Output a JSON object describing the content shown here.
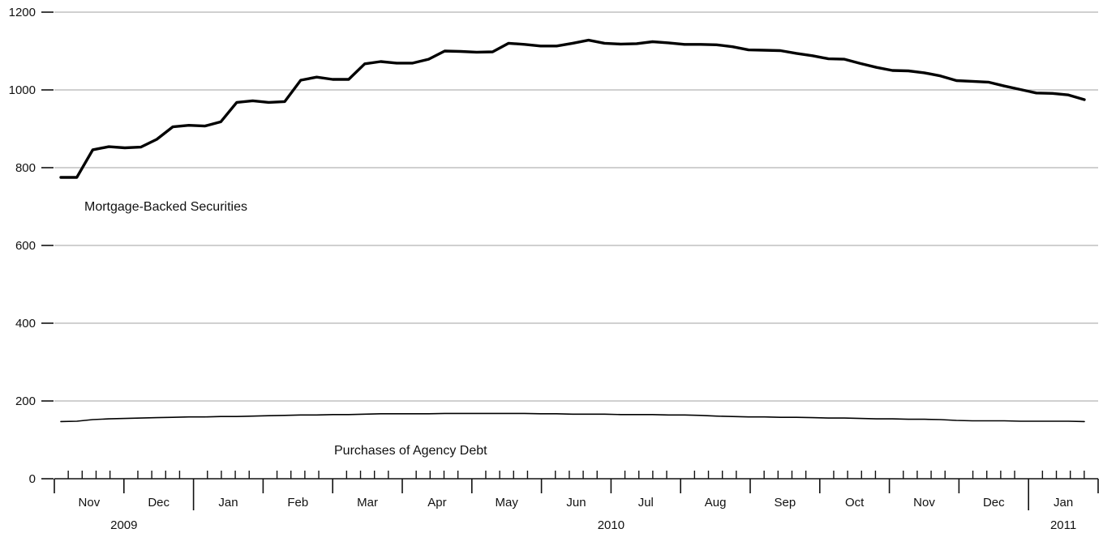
{
  "chart_data": {
    "type": "line",
    "title": "",
    "xlabel": "",
    "ylabel": "",
    "ylim": [
      0,
      1200
    ],
    "yticks": [
      0,
      200,
      400,
      600,
      800,
      1000,
      1200
    ],
    "grid": true,
    "months": [
      {
        "label": "Nov",
        "year": "2009"
      },
      {
        "label": "Dec",
        "year": "2009"
      },
      {
        "label": "Jan",
        "year": "2010"
      },
      {
        "label": "Feb",
        "year": "2010"
      },
      {
        "label": "Mar",
        "year": "2010"
      },
      {
        "label": "Apr",
        "year": "2010"
      },
      {
        "label": "May",
        "year": "2010"
      },
      {
        "label": "Jun",
        "year": "2010"
      },
      {
        "label": "Jul",
        "year": "2010"
      },
      {
        "label": "Aug",
        "year": "2010"
      },
      {
        "label": "Sep",
        "year": "2010"
      },
      {
        "label": "Oct",
        "year": "2010"
      },
      {
        "label": "Nov",
        "year": "2010"
      },
      {
        "label": "Dec",
        "year": "2010"
      },
      {
        "label": "Jan",
        "year": "2011"
      }
    ],
    "years": [
      {
        "label": "2009",
        "months": 2
      },
      {
        "label": "2010",
        "months": 12
      },
      {
        "label": "2011",
        "months": 1
      }
    ],
    "frequency": "weekly",
    "series": [
      {
        "name": "Mortgage-Backed Securities",
        "values": [
          775,
          775,
          846,
          854,
          851,
          853,
          873,
          905,
          909,
          907,
          918,
          968,
          972,
          968,
          970,
          1025,
          1033,
          1027,
          1027,
          1067,
          1073,
          1069,
          1069,
          1079,
          1100,
          1099,
          1097,
          1098,
          1120,
          1117,
          1113,
          1113,
          1120,
          1128,
          1120,
          1118,
          1119,
          1124,
          1121,
          1117,
          1117,
          1116,
          1111,
          1103,
          1102,
          1101,
          1094,
          1088,
          1080,
          1079,
          1068,
          1058,
          1050,
          1049,
          1044,
          1036,
          1024,
          1022,
          1020,
          1010,
          1001,
          992,
          991,
          987,
          975
        ]
      },
      {
        "name": "Purchases of Agency Debt",
        "values": [
          147,
          148,
          152,
          154,
          155,
          156,
          157,
          158,
          159,
          159,
          160,
          160,
          161,
          162,
          163,
          164,
          164,
          165,
          165,
          166,
          167,
          167,
          167,
          167,
          168,
          168,
          168,
          168,
          168,
          168,
          167,
          167,
          166,
          166,
          166,
          165,
          165,
          165,
          164,
          164,
          163,
          161,
          160,
          159,
          159,
          158,
          158,
          157,
          156,
          156,
          155,
          154,
          154,
          153,
          153,
          152,
          150,
          149,
          149,
          149,
          148,
          148,
          148,
          148,
          147
        ]
      }
    ],
    "annotations": [
      "Mortgage-Backed Securities",
      "Purchases of Agency Debt"
    ]
  }
}
